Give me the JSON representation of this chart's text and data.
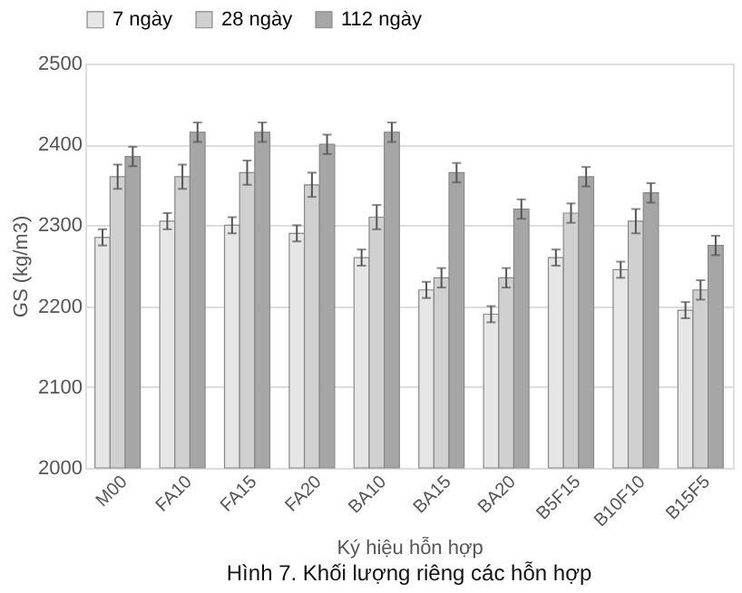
{
  "chart_data": {
    "type": "bar",
    "title": "Hình 7. Khối lượng riêng các hỗn hợp",
    "xlabel": "Ký hiệu hỗn hợp",
    "ylabel": "GS (kg/m3)",
    "categories": [
      "M00",
      "FA10",
      "FA15",
      "FA20",
      "BA10",
      "BA15",
      "BA20",
      "B5F15",
      "B10F10",
      "B15F5"
    ],
    "series": [
      {
        "name": "7 ngày",
        "color": "#e6e6e6",
        "values": [
          2285,
          2305,
          2300,
          2290,
          2260,
          2220,
          2190,
          2260,
          2245,
          2195
        ],
        "errors": [
          10,
          10,
          10,
          10,
          10,
          10,
          10,
          10,
          10,
          10
        ]
      },
      {
        "name": "28 ngày",
        "color": "#d0d0d0",
        "values": [
          2360,
          2360,
          2365,
          2350,
          2310,
          2235,
          2235,
          2315,
          2305,
          2220
        ],
        "errors": [
          15,
          15,
          15,
          15,
          15,
          12,
          12,
          12,
          15,
          12
        ]
      },
      {
        "name": "112 ngày",
        "color": "#a6a6a6",
        "values": [
          2385,
          2415,
          2415,
          2400,
          2415,
          2365,
          2320,
          2360,
          2340,
          2275
        ],
        "errors": [
          12,
          12,
          12,
          12,
          12,
          12,
          12,
          12,
          12,
          12
        ]
      }
    ],
    "ylim": [
      2000,
      2500
    ],
    "yticks": [
      2000,
      2100,
      2200,
      2300,
      2400,
      2500
    ],
    "grid": "y",
    "legend": "top"
  }
}
